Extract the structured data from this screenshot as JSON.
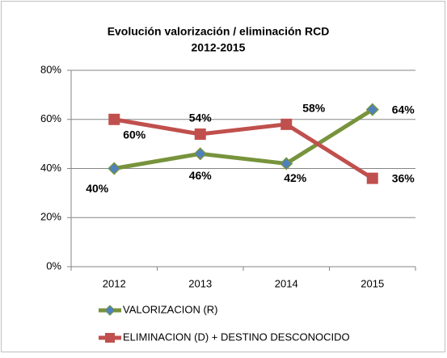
{
  "chart_data": {
    "type": "line",
    "title": "Evolución valorización / eliminación RCD",
    "subtitle": "2012-2015",
    "categories": [
      "2012",
      "2013",
      "2014",
      "2015"
    ],
    "series": [
      {
        "name": "VALORIZACION (R)",
        "color": "#77933c",
        "marker_color": "#4f81bd",
        "values": [
          40,
          46,
          42,
          64
        ],
        "value_labels": [
          "40%",
          "46%",
          "42%",
          "64%"
        ]
      },
      {
        "name": "ELIMINACION (D) + DESTINO DESCONOCIDO",
        "color": "#c0504d",
        "marker_color": "#c0504d",
        "values": [
          60,
          54,
          58,
          36
        ],
        "value_labels": [
          "60%",
          "54%",
          "58%",
          "36%"
        ]
      }
    ],
    "ylim": [
      0,
      80
    ],
    "yticks": [
      {
        "value": 0,
        "label": "0%"
      },
      {
        "value": 20,
        "label": "20%"
      },
      {
        "value": 40,
        "label": "40%"
      },
      {
        "value": 60,
        "label": "60%"
      },
      {
        "value": 80,
        "label": "80%"
      }
    ],
    "grid": true,
    "legend": "bottom"
  }
}
